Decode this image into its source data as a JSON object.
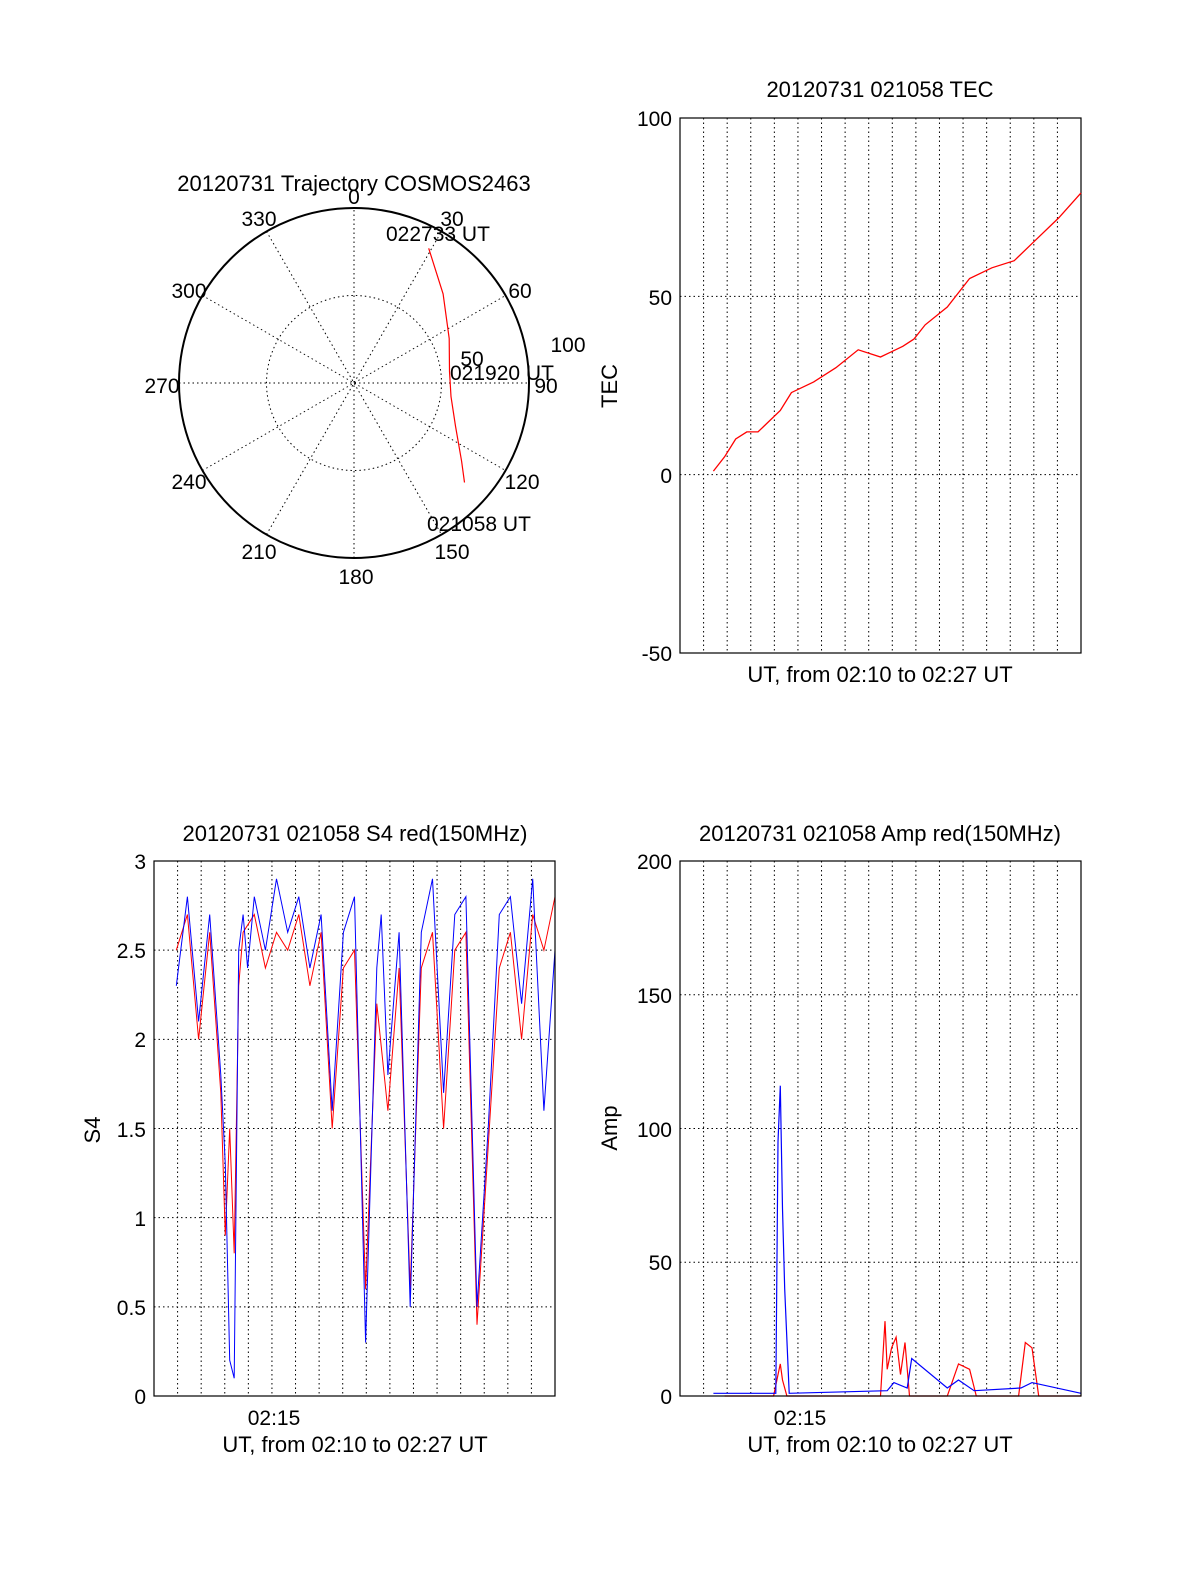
{
  "colors": {
    "red": "#ff0000",
    "blue": "#0000ff",
    "black": "#000000"
  },
  "chart_data": [
    {
      "type": "polar",
      "title": "20120731 Trajectory COSMOS2463",
      "azimuth_labels": [
        "0",
        "30",
        "60",
        "90",
        "120",
        "150",
        "180",
        "210",
        "240",
        "270",
        "300",
        "330"
      ],
      "ring_labels": [
        "50",
        "100"
      ],
      "trajectory": [
        {
          "az": 29,
          "r": 88
        },
        {
          "az": 45,
          "r": 72
        },
        {
          "az": 65,
          "r": 60
        },
        {
          "az": 83,
          "r": 55
        },
        {
          "az": 98,
          "r": 56
        },
        {
          "az": 113,
          "r": 63
        },
        {
          "az": 126,
          "r": 76
        },
        {
          "az": 132,
          "r": 85
        }
      ],
      "time_labels": [
        "022733 UT",
        "021920 UT",
        "021058 UT"
      ]
    },
    {
      "type": "line",
      "title": "20120731 021058 TEC",
      "xlabel": "UT, from 02:10 to 02:27 UT",
      "ylabel": "TEC",
      "ylim": [
        -50,
        100
      ],
      "yticks": [
        "100",
        "50",
        "0",
        "-50"
      ],
      "series": [
        {
          "color": "red",
          "x": [
            0.5,
            1.0,
            1.5,
            2.0,
            2.5,
            3.5,
            4.0,
            5.0,
            6.0,
            7.0,
            8.0,
            9.0,
            9.5,
            10.0,
            11.0,
            12.0,
            13.0,
            14.0,
            15.0,
            16.0,
            17.0
          ],
          "y": [
            1,
            5,
            10,
            12,
            12,
            18,
            23,
            26,
            30,
            35,
            33,
            36,
            38,
            42,
            47,
            55,
            58,
            60,
            66,
            72,
            79
          ]
        }
      ]
    },
    {
      "type": "line",
      "title": "20120731 021058 S4 red(150MHz)",
      "xlabel": "UT, from 02:10 to 02:27 UT",
      "ylabel": "S4",
      "ylim": [
        0,
        3
      ],
      "xtick_label": "02:15",
      "yticks": [
        "3",
        "2.5",
        "2",
        "1.5",
        "1",
        "0.5",
        "0"
      ],
      "series": [
        {
          "color": "blue",
          "x": [
            0.0,
            0.5,
            1.0,
            1.5,
            2.0,
            2.2,
            2.4,
            2.6,
            2.8,
            3.0,
            3.2,
            3.5,
            4.0,
            4.5,
            5.0,
            5.5,
            6.0,
            6.5,
            7.0,
            7.5,
            8.0,
            8.5,
            9.0,
            9.2,
            9.5,
            10.0,
            10.5,
            11.0,
            11.5,
            12.0,
            12.5,
            13.0,
            13.5,
            14.0,
            14.5,
            15.0,
            15.5,
            16.0,
            16.5,
            17.0
          ],
          "y": [
            2.3,
            2.8,
            2.1,
            2.7,
            1.8,
            1.3,
            0.2,
            0.1,
            2.5,
            2.7,
            2.4,
            2.8,
            2.5,
            2.9,
            2.6,
            2.8,
            2.4,
            2.7,
            1.6,
            2.6,
            2.8,
            0.3,
            2.4,
            2.7,
            1.8,
            2.6,
            0.5,
            2.6,
            2.9,
            1.7,
            2.7,
            2.8,
            0.5,
            1.5,
            2.7,
            2.8,
            2.2,
            2.9,
            1.6,
            2.5
          ]
        },
        {
          "color": "red",
          "x": [
            0.0,
            0.5,
            1.0,
            1.5,
            2.0,
            2.2,
            2.4,
            2.6,
            2.8,
            3.0,
            3.5,
            4.0,
            4.5,
            5.0,
            5.5,
            6.0,
            6.5,
            7.0,
            7.5,
            8.0,
            8.5,
            9.0,
            9.5,
            10.0,
            10.5,
            11.0,
            11.5,
            12.0,
            12.5,
            13.0,
            13.5,
            14.0,
            14.5,
            15.0,
            15.5,
            16.0,
            16.5,
            17.0
          ],
          "y": [
            2.5,
            2.7,
            2.0,
            2.6,
            1.7,
            0.9,
            1.5,
            0.8,
            2.3,
            2.6,
            2.7,
            2.4,
            2.6,
            2.5,
            2.7,
            2.3,
            2.6,
            1.5,
            2.4,
            2.5,
            0.6,
            2.2,
            1.6,
            2.4,
            0.6,
            2.4,
            2.6,
            1.5,
            2.5,
            2.6,
            0.4,
            1.4,
            2.4,
            2.6,
            2.0,
            2.7,
            2.5,
            2.8
          ]
        }
      ]
    },
    {
      "type": "line",
      "title": "20120731 021058 Amp red(150MHz)",
      "xlabel": "UT, from 02:10 to 02:27 UT",
      "ylabel": "Amp",
      "ylim": [
        0,
        200
      ],
      "xtick_label": "02:15",
      "yticks": [
        "200",
        "150",
        "100",
        "50",
        "0"
      ],
      "series": [
        {
          "color": "red",
          "x": [
            1.0,
            3.2,
            3.4,
            3.5,
            3.6,
            3.8,
            8.0,
            8.2,
            8.3,
            8.5,
            8.7,
            8.9,
            9.1,
            9.3,
            11.0,
            11.5,
            12.0,
            12.3,
            14.2,
            14.5,
            14.8,
            15.1,
            17.0
          ],
          "y": [
            0,
            0,
            8,
            12,
            6,
            0,
            0,
            28,
            10,
            18,
            22,
            8,
            20,
            0,
            0,
            12,
            10,
            0,
            0,
            20,
            18,
            0,
            0
          ]
        },
        {
          "color": "blue",
          "x": [
            0.5,
            3.3,
            3.4,
            3.5,
            3.6,
            3.7,
            3.9,
            8.3,
            8.6,
            9.2,
            9.4,
            11.0,
            11.5,
            12.2,
            14.3,
            14.8,
            17.0
          ],
          "y": [
            1,
            1,
            95,
            116,
            70,
            40,
            1,
            2,
            5,
            3,
            14,
            3,
            6,
            2,
            3,
            5,
            1
          ]
        }
      ]
    }
  ]
}
